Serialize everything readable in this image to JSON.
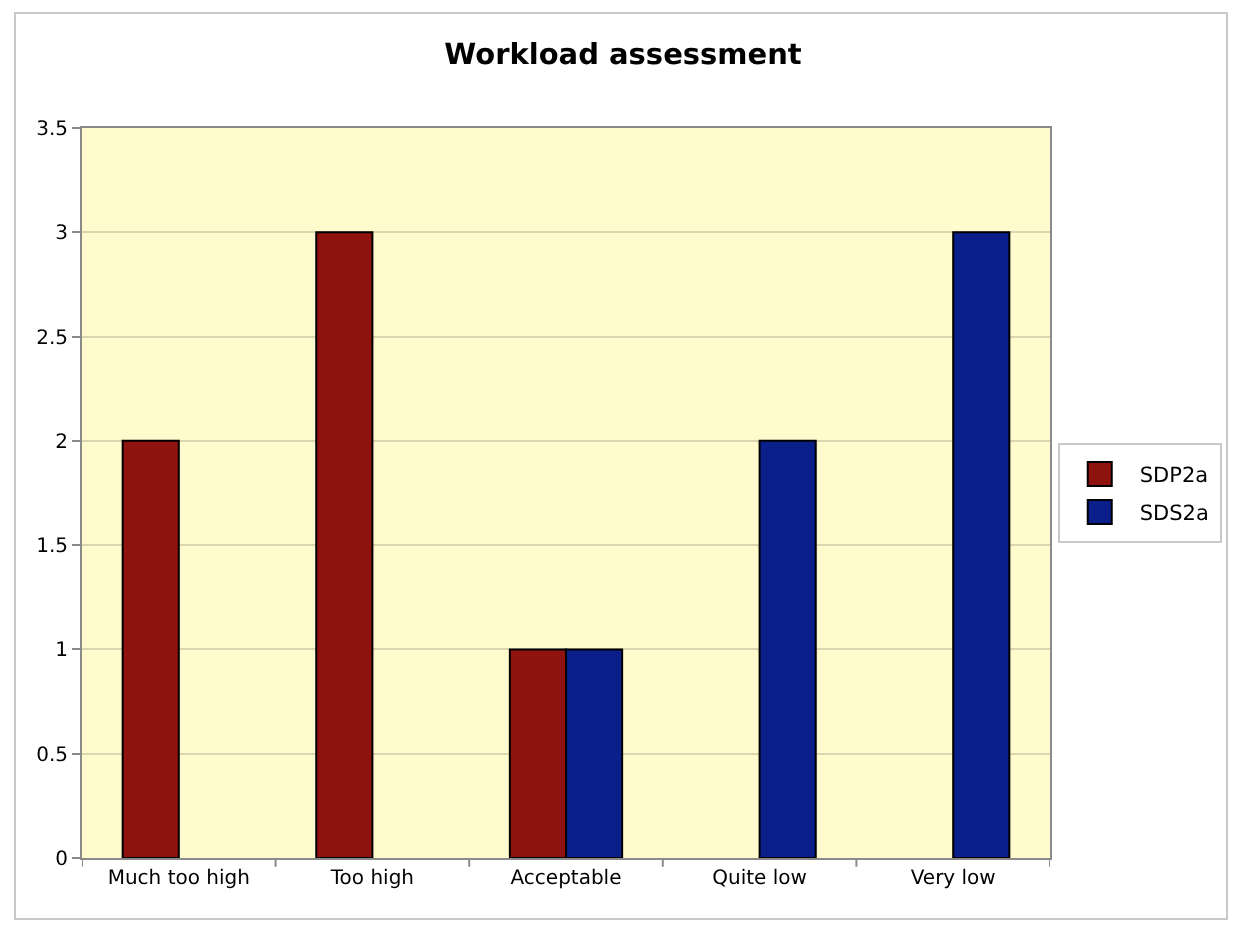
{
  "chart_data": {
    "type": "bar",
    "title": "Workload assessment",
    "categories": [
      "Much too high",
      "Too high",
      "Acceptable",
      "Quite low",
      "Very low"
    ],
    "series": [
      {
        "name": "SDP2a",
        "color": "#8e130e",
        "values": [
          2,
          3,
          1,
          null,
          null
        ]
      },
      {
        "name": "SDS2a",
        "color": "#0b1f8b",
        "values": [
          null,
          null,
          1,
          2,
          3
        ]
      }
    ],
    "ylim": [
      0,
      3.5
    ],
    "yticks": [
      0,
      0.5,
      1,
      1.5,
      2,
      2.5,
      3,
      3.5
    ],
    "grid": "y",
    "legend": "right"
  }
}
